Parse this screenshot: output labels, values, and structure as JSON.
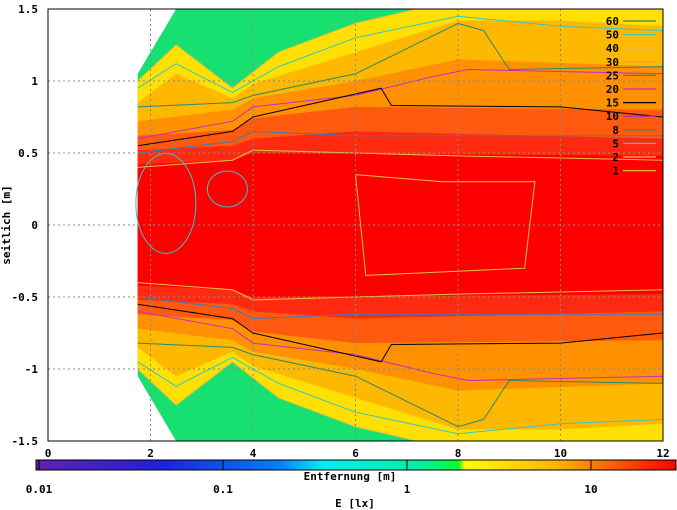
{
  "chart_data": {
    "type": "heatmap",
    "title": "",
    "xlabel": "Entfernung [m]",
    "ylabel": "seitlich [m]",
    "cblabel": "E [lx]",
    "xlim": [
      0,
      12
    ],
    "ylim": [
      -1.5,
      1.5
    ],
    "xticks": [
      "0",
      "2",
      "4",
      "6",
      "8",
      "10",
      "12"
    ],
    "yticks": [
      "1.5",
      "1",
      "0.5",
      "0",
      "-0.5",
      "-1",
      "-1.5"
    ],
    "cbticks": [
      "0.01",
      "0.1",
      "1",
      "10"
    ],
    "cbrange": [
      0.01,
      30
    ],
    "grid": true,
    "legend_position": "top-right",
    "contour_levels": [
      {
        "label": "60",
        "color": "#2a8a6a"
      },
      {
        "label": "50",
        "color": "#33c8c8"
      },
      {
        "label": "40",
        "color": "#e8c040"
      },
      {
        "label": "30",
        "color": "#e8a020"
      },
      {
        "label": "25",
        "color": "#3a7ab8"
      },
      {
        "label": "20",
        "color": "#c030c0"
      },
      {
        "label": "15",
        "color": "#000000"
      },
      {
        "label": "10",
        "color": "#b020d0"
      },
      {
        "label": "8",
        "color": "#2a8a6a"
      },
      {
        "label": "5",
        "color": "#33c8c8"
      },
      {
        "label": "2",
        "color": "#e8c040"
      },
      {
        "label": "1",
        "color": "#e8b030"
      }
    ],
    "fill_bands": [
      {
        "min_lx": 1,
        "color": "#18e070",
        "profile": [
          [
            1.75,
            1.05
          ],
          [
            2.5,
            1.55
          ],
          [
            12,
            1.55
          ]
        ]
      },
      {
        "min_lx": 2,
        "color": "#ffe000",
        "profile": [
          [
            1.75,
            1.0
          ],
          [
            2.5,
            1.25
          ],
          [
            3.6,
            0.95
          ],
          [
            4.5,
            1.2
          ],
          [
            6,
            1.4
          ],
          [
            7.2,
            1.55
          ],
          [
            12,
            1.55
          ]
        ]
      },
      {
        "min_lx": 5,
        "color": "#ffb800",
        "profile": [
          [
            1.75,
            0.85
          ],
          [
            2.5,
            1.05
          ],
          [
            3.6,
            0.88
          ],
          [
            4,
            0.98
          ],
          [
            6,
            1.2
          ],
          [
            8,
            1.42
          ],
          [
            10,
            1.42
          ],
          [
            12,
            1.38
          ]
        ]
      },
      {
        "min_lx": 10,
        "color": "#ff9000",
        "profile": [
          [
            1.75,
            0.72
          ],
          [
            3.6,
            0.8
          ],
          [
            4,
            0.88
          ],
          [
            6,
            1.0
          ],
          [
            8,
            1.15
          ],
          [
            12,
            1.1
          ]
        ]
      },
      {
        "min_lx": 15,
        "color": "#ff5a10",
        "profile": [
          [
            1.75,
            0.62
          ],
          [
            3.6,
            0.66
          ],
          [
            4,
            0.74
          ],
          [
            6,
            0.82
          ],
          [
            12,
            0.8
          ]
        ]
      },
      {
        "min_lx": 20,
        "color": "#ff2a10",
        "profile": [
          [
            1.75,
            0.52
          ],
          [
            3.6,
            0.55
          ],
          [
            4,
            0.6
          ],
          [
            6,
            0.65
          ],
          [
            12,
            0.6
          ]
        ]
      },
      {
        "min_lx": 30,
        "color": "#ff0000",
        "profile": [
          [
            1.75,
            0.42
          ],
          [
            3.6,
            0.45
          ],
          [
            4,
            0.5
          ],
          [
            12,
            0.48
          ]
        ]
      }
    ],
    "contour_lines": [
      {
        "level": "1",
        "color": "#e8c040",
        "profile": [
          [
            1.75,
            1.0
          ],
          [
            2.5,
            1.25
          ],
          [
            3.6,
            0.95
          ],
          [
            4.5,
            1.2
          ],
          [
            6,
            1.4
          ],
          [
            7.2,
            1.55
          ]
        ]
      },
      {
        "level": "50",
        "color": "#33c8c8",
        "profile": [
          [
            1.75,
            0.95
          ],
          [
            2.5,
            1.12
          ],
          [
            3.6,
            0.92
          ],
          [
            4.5,
            1.1
          ],
          [
            6,
            1.3
          ],
          [
            8,
            1.45
          ],
          [
            10,
            1.38
          ],
          [
            12,
            1.35
          ]
        ]
      },
      {
        "level": "25",
        "color": "#2a8a6a",
        "profile": [
          [
            1.75,
            0.82
          ],
          [
            3.6,
            0.85
          ],
          [
            4,
            0.9
          ],
          [
            6,
            1.05
          ],
          [
            8,
            1.4
          ],
          [
            8.5,
            1.35
          ],
          [
            9,
            1.08
          ],
          [
            12,
            1.1
          ]
        ]
      },
      {
        "level": "20",
        "color": "#c030c0",
        "profile": [
          [
            1.75,
            0.6
          ],
          [
            3.6,
            0.72
          ],
          [
            4,
            0.82
          ],
          [
            6,
            0.9
          ],
          [
            7.5,
            1.03
          ],
          [
            8.2,
            1.08
          ],
          [
            12,
            1.05
          ]
        ]
      },
      {
        "level": "15",
        "color": "#000000",
        "profile": [
          [
            1.75,
            0.55
          ],
          [
            3.6,
            0.65
          ],
          [
            4,
            0.75
          ],
          [
            6.5,
            0.95
          ],
          [
            6.7,
            0.83
          ],
          [
            10,
            0.82
          ],
          [
            12,
            0.75
          ]
        ]
      },
      {
        "level": "10",
        "color": "#3a7ab8",
        "profile": [
          [
            1.75,
            0.5
          ],
          [
            3.6,
            0.58
          ],
          [
            4,
            0.65
          ],
          [
            6,
            0.62
          ],
          [
            12,
            0.62
          ]
        ]
      },
      {
        "level": "5",
        "color": "#e8c040",
        "profile": [
          [
            1.75,
            0.4
          ],
          [
            3.6,
            0.45
          ],
          [
            4,
            0.52
          ],
          [
            8,
            0.48
          ],
          [
            12,
            0.45
          ]
        ]
      }
    ]
  }
}
